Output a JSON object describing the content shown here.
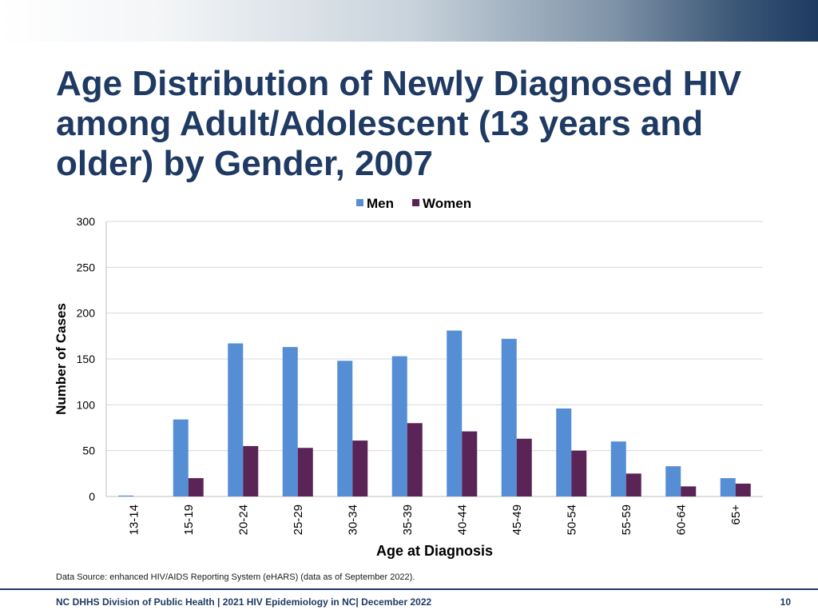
{
  "slide": {
    "title": "Age Distribution of Newly Diagnosed HIV among Adult/Adolescent (13 years and older) by Gender, 2007",
    "source": "Data Source: enhanced HIV/AIDS Reporting System (eHARS) (data as of September 2022).",
    "footer": "NC DHHS Division of Public Health | 2021 HIV Epidemiology in NC| December 2022",
    "page_number": "10"
  },
  "chart_data": {
    "type": "bar",
    "categories": [
      "13-14",
      "15-19",
      "20-24",
      "25-29",
      "30-34",
      "35-39",
      "40-44",
      "45-49",
      "50-54",
      "55-59",
      "60-64",
      "65+"
    ],
    "series": [
      {
        "name": "Men",
        "color": "#558ed5",
        "values": [
          1,
          84,
          167,
          163,
          148,
          153,
          181,
          172,
          96,
          60,
          33,
          20
        ]
      },
      {
        "name": "Women",
        "color": "#5a2456",
        "values": [
          0,
          20,
          55,
          53,
          61,
          80,
          71,
          63,
          50,
          25,
          11,
          14
        ]
      }
    ],
    "xlabel": "Age at Diagnosis",
    "ylabel": "Number of Cases",
    "ylim": [
      0,
      300
    ],
    "yticks": [
      0,
      50,
      100,
      150,
      200,
      250,
      300
    ],
    "grid": true,
    "legend_position": "top"
  }
}
